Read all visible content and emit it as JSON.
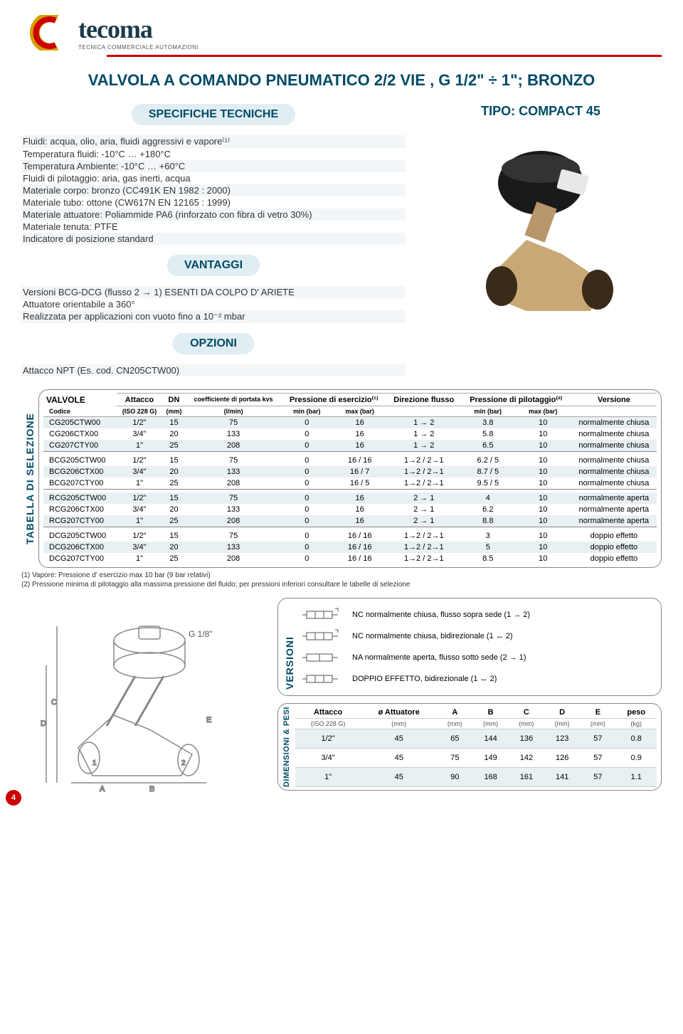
{
  "logo": {
    "brand": "tecoma",
    "subtitle": "TECNICA COMMERCIALE AUTOMAZIONI"
  },
  "title": "VALVOLA A COMANDO PNEUMATICO 2/2 VIE , G 1/2\" ÷ 1\"; BRONZO",
  "specifiche": {
    "heading": "SPECIFICHE TECNICHE",
    "lines": [
      "Fluidi: acqua, olio, aria, fluidi aggressivi e vapore⁽¹⁾",
      "Temperatura fluidi: -10°C … +180°C",
      "Temperatura Ambiente: -10°C … +60°C",
      "Fluidi di pilotaggio: aria, gas inerti, acqua",
      "Materiale corpo: bronzo (CC491K EN 1982 : 2000)",
      "Materiale tubo: ottone (CW617N EN 12165 : 1999)",
      "Materiale attuatore: Poliammide PA6 (rinforzato con fibra di vetro 30%)",
      "Materiale tenuta: PTFE",
      "Indicatore di posizione standard"
    ]
  },
  "tipo": "TIPO: COMPACT 45",
  "vantaggi": {
    "heading": "VANTAGGI",
    "lines": [
      "Versioni BCG-DCG (flusso 2 → 1) ESENTI DA COLPO D' ARIETE",
      "Attuatore orientabile a 360°",
      "Realizzata per applicazioni con vuoto fino a 10⁻² mbar"
    ]
  },
  "opzioni": {
    "heading": "OPZIONI",
    "line": "Attacco NPT (Es. cod. CN205CTW00)"
  },
  "table": {
    "side_label": "TABELLA DI SELEZIONE",
    "headers": {
      "valvole": "VALVOLE",
      "attacco": "Attacco",
      "dn": "DN",
      "coeff": "coefficiente di portata kvs",
      "pressione_es": "Pressione di esercizio⁽¹⁾",
      "direzione": "Direzione flusso",
      "pressione_pil": "Pressione di pilotaggio⁽²⁾",
      "versione": "Versione",
      "sub_codice": "Codice",
      "sub_iso": "(ISO 228 G)",
      "sub_mm": "(mm)",
      "sub_lmin": "(l/min)",
      "sub_minbar": "min (bar)",
      "sub_maxbar": "max (bar)"
    },
    "rows": [
      {
        "code": "CG205CTW00",
        "att": "1/2\"",
        "dn": "15",
        "kvs": "75",
        "min": "0",
        "max": "16",
        "dir": "1 → 2",
        "pmin": "3.8",
        "pmax": "10",
        "ver": "normalmente chiusa",
        "shade": true
      },
      {
        "code": "CG206CTX00",
        "att": "3/4\"",
        "dn": "20",
        "kvs": "133",
        "min": "0",
        "max": "16",
        "dir": "1 → 2",
        "pmin": "5.8",
        "pmax": "10",
        "ver": "normalmente chiusa"
      },
      {
        "code": "CG207CTY00",
        "att": "1\"",
        "dn": "25",
        "kvs": "208",
        "min": "0",
        "max": "16",
        "dir": "1 → 2",
        "pmin": "6.5",
        "pmax": "10",
        "ver": "normalmente chiusa",
        "shade": true
      },
      {
        "sep": true
      },
      {
        "code": "BCG205CTW00",
        "att": "1/2\"",
        "dn": "15",
        "kvs": "75",
        "min": "0",
        "max": "16 / 16",
        "dir": "1→2 / 2→1",
        "pmin": "6.2 / 5",
        "pmax": "10",
        "ver": "normalmente chiusa"
      },
      {
        "code": "BCG206CTX00",
        "att": "3/4\"",
        "dn": "20",
        "kvs": "133",
        "min": "0",
        "max": "16 / 7",
        "dir": "1→2 / 2→1",
        "pmin": "8.7 / 5",
        "pmax": "10",
        "ver": "normalmente chiusa",
        "shade": true
      },
      {
        "code": "BCG207CTY00",
        "att": "1\"",
        "dn": "25",
        "kvs": "208",
        "min": "0",
        "max": "16 / 5",
        "dir": "1→2 / 2→1",
        "pmin": "9.5 / 5",
        "pmax": "10",
        "ver": "normalmente chiusa"
      },
      {
        "sep": true
      },
      {
        "code": "RCG205CTW00",
        "att": "1/2\"",
        "dn": "15",
        "kvs": "75",
        "min": "0",
        "max": "16",
        "dir": "2 → 1",
        "pmin": "4",
        "pmax": "10",
        "ver": "normalmente aperta",
        "shade": true
      },
      {
        "code": "RCG206CTX00",
        "att": "3/4\"",
        "dn": "20",
        "kvs": "133",
        "min": "0",
        "max": "16",
        "dir": "2 → 1",
        "pmin": "6.2",
        "pmax": "10",
        "ver": "normalmente aperta"
      },
      {
        "code": "RCG207CTY00",
        "att": "1\"",
        "dn": "25",
        "kvs": "208",
        "min": "0",
        "max": "16",
        "dir": "2 → 1",
        "pmin": "8.8",
        "pmax": "10",
        "ver": "normalmente aperta",
        "shade": true
      },
      {
        "sep": true
      },
      {
        "code": "DCG205CTW00",
        "att": "1/2\"",
        "dn": "15",
        "kvs": "75",
        "min": "0",
        "max": "16 / 16",
        "dir": "1→2 / 2→1",
        "pmin": "3",
        "pmax": "10",
        "ver": "doppio effetto"
      },
      {
        "code": "DCG206CTX00",
        "att": "3/4\"",
        "dn": "20",
        "kvs": "133",
        "min": "0",
        "max": "16 / 16",
        "dir": "1→2 / 2→1",
        "pmin": "5",
        "pmax": "10",
        "ver": "doppio effetto",
        "shade": true
      },
      {
        "code": "DCG207CTY00",
        "att": "1\"",
        "dn": "25",
        "kvs": "208",
        "min": "0",
        "max": "16 / 16",
        "dir": "1→2 / 2→1",
        "pmin": "8.5",
        "pmax": "10",
        "ver": "doppio effetto"
      }
    ]
  },
  "notes": {
    "n1": "(1) Vapore: Pressione d' esercizio max 10 bar (9 bar relativi)",
    "n2": "(2) Pressione minima di pilotaggio alla massima pressione del fluido; per pressioni inferiori consultare le tabelle di selezione"
  },
  "versioni": {
    "label": "VERSIONI",
    "rows": [
      "NC normalmente chiusa, flusso sopra sede  (1 → 2)",
      "NC normalmente chiusa, bidirezionale  (1 ↔ 2)",
      "NA normalmente aperta, flusso sotto sede  (2 → 1)",
      "DOPPIO EFFETTO, bidirezionale  (1 ↔ 2)"
    ]
  },
  "dimensioni": {
    "label": "DIMENSIONI & PESI",
    "headers": [
      "Attacco",
      "ø Attuatore",
      "A",
      "B",
      "C",
      "D",
      "E",
      "peso"
    ],
    "sub": [
      "(ISO 228 G)",
      "(mm)",
      "(mm)",
      "(mm)",
      "(mm)",
      "(mm)",
      "(mm)",
      "(kg)"
    ],
    "rows": [
      {
        "d": [
          "1/2\"",
          "45",
          "65",
          "144",
          "136",
          "123",
          "57",
          "0.8"
        ],
        "shade": true
      },
      {
        "d": [
          "3/4\"",
          "45",
          "75",
          "149",
          "142",
          "126",
          "57",
          "0.9"
        ]
      },
      {
        "d": [
          "1\"",
          "45",
          "90",
          "168",
          "161",
          "141",
          "57",
          "1.1"
        ],
        "shade": true
      }
    ]
  },
  "drawing_label": "G 1/8\"",
  "page_num": "4",
  "colors": {
    "accent": "#004a66",
    "pill_bg": "#e0edf2",
    "red": "#cc0000",
    "shade": "#e8f0f3"
  }
}
